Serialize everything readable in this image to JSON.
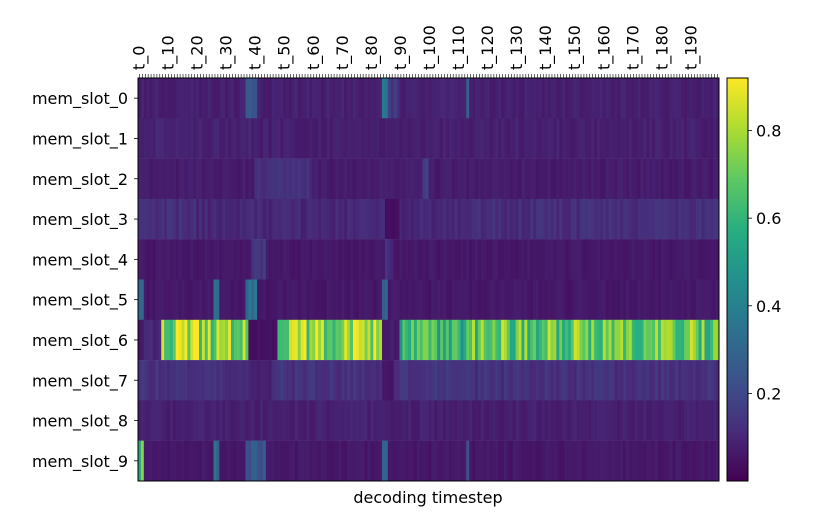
{
  "chart_data": {
    "type": "heatmap",
    "xlabel": "decoding timestep",
    "x_tick_labels": [
      "t_0",
      "t_10",
      "t_20",
      "t_30",
      "t_40",
      "t_50",
      "t_60",
      "t_70",
      "t_80",
      "t_90",
      "t_100",
      "t_110",
      "t_120",
      "t_130",
      "t_140",
      "t_150",
      "t_160",
      "t_170",
      "t_180",
      "t_190"
    ],
    "x_count": 200,
    "rows": [
      "mem_slot_0",
      "mem_slot_1",
      "mem_slot_2",
      "mem_slot_3",
      "mem_slot_4",
      "mem_slot_5",
      "mem_slot_6",
      "mem_slot_7",
      "mem_slot_8",
      "mem_slot_9"
    ],
    "colormap": "viridis",
    "colorbar": {
      "min": 0.0,
      "max": 0.92,
      "ticks": [
        0.2,
        0.4,
        0.6,
        0.8
      ],
      "tick_labels": [
        "0.2",
        "0.4",
        "0.6",
        "0.8"
      ]
    },
    "profiles": [
      {
        "row": 0,
        "base": 0.08,
        "spans": [
          [
            37,
            41,
            0.22
          ],
          [
            84,
            86,
            0.3
          ],
          [
            86,
            90,
            0.16
          ],
          [
            113,
            114,
            0.28
          ]
        ]
      },
      {
        "row": 1,
        "base": 0.08,
        "spans": [
          [
            0,
            40,
            0.09
          ]
        ]
      },
      {
        "row": 2,
        "base": 0.07,
        "spans": [
          [
            40,
            60,
            0.12
          ],
          [
            98,
            100,
            0.2
          ]
        ]
      },
      {
        "row": 3,
        "base": 0.1,
        "spans": [
          [
            0,
            20,
            0.12
          ],
          [
            85,
            90,
            0.04
          ],
          [
            114,
            200,
            0.12
          ]
        ]
      },
      {
        "row": 4,
        "base": 0.06,
        "spans": [
          [
            39,
            44,
            0.16
          ],
          [
            85,
            88,
            0.12
          ]
        ]
      },
      {
        "row": 5,
        "base": 0.06,
        "spans": [
          [
            0,
            2,
            0.3
          ],
          [
            26,
            28,
            0.35
          ],
          [
            37,
            41,
            0.3
          ],
          [
            84,
            86,
            0.35
          ]
        ]
      },
      {
        "row": 6,
        "base": 0.55,
        "spans": [
          [
            0,
            2,
            0.05
          ],
          [
            2,
            8,
            0.1
          ],
          [
            8,
            38,
            0.78
          ],
          [
            38,
            48,
            0.04
          ],
          [
            48,
            84,
            0.78
          ],
          [
            84,
            90,
            0.07
          ],
          [
            90,
            114,
            0.6
          ],
          [
            114,
            200,
            0.7
          ]
        ]
      },
      {
        "row": 7,
        "base": 0.13,
        "spans": [
          [
            38,
            46,
            0.08
          ],
          [
            84,
            88,
            0.06
          ]
        ]
      },
      {
        "row": 8,
        "base": 0.08,
        "spans": []
      },
      {
        "row": 9,
        "base": 0.06,
        "spans": [
          [
            0,
            2,
            0.62
          ],
          [
            26,
            28,
            0.3
          ],
          [
            37,
            44,
            0.25
          ],
          [
            84,
            86,
            0.3
          ],
          [
            113,
            114,
            0.3
          ]
        ]
      }
    ]
  }
}
